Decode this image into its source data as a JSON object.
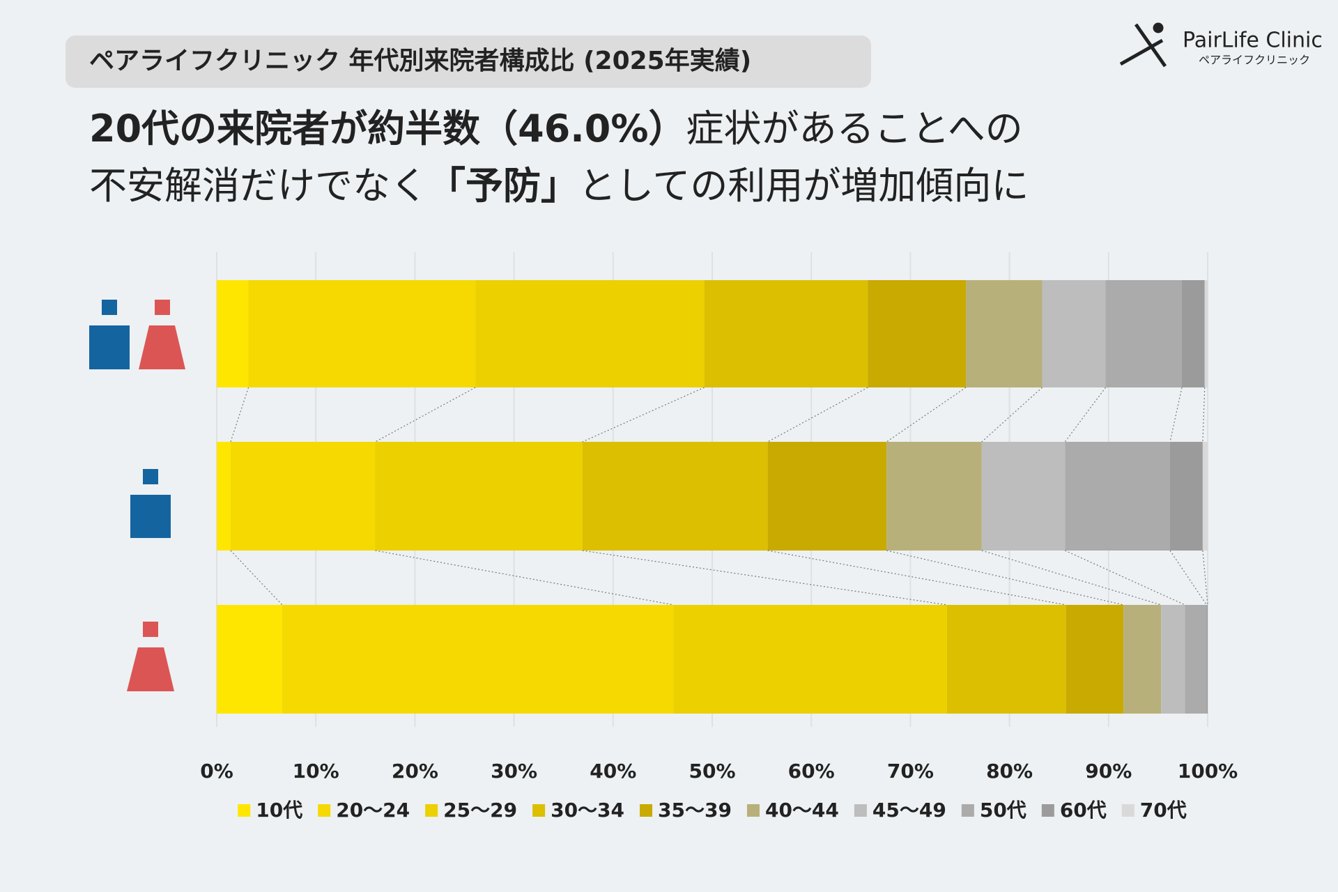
{
  "badge": "ペアライフクリニック 年代別来院者構成比 (2025年実績)",
  "logo": {
    "name": "PairLife Clinic",
    "sub": "ペアライフクリニック"
  },
  "headline": [
    [
      {
        "text": "20代の来院者が約半数（46.0%）",
        "bold": true
      },
      {
        "text": "症状があることへの",
        "bold": false
      }
    ],
    [
      {
        "text": "不安解消だけでなく",
        "bold": false
      },
      {
        "text": "「予防」",
        "bold": true
      },
      {
        "text": "としての利用が増加傾向に",
        "bold": false
      }
    ]
  ],
  "chart_data": {
    "type": "stacked-bar-horizontal",
    "categories": [
      null,
      null,
      null
    ],
    "xlim": [
      0,
      100
    ],
    "xticks": [
      {
        "value": 0,
        "label": "0%"
      },
      {
        "value": 10,
        "label": "10%"
      },
      {
        "value": 20,
        "label": "20%"
      },
      {
        "value": 30,
        "label": "30%"
      },
      {
        "value": 40,
        "label": "40%"
      },
      {
        "value": 50,
        "label": "50%"
      },
      {
        "value": 60,
        "label": "60%"
      },
      {
        "value": 70,
        "label": "70%"
      },
      {
        "value": 80,
        "label": "80%"
      },
      {
        "value": 90,
        "label": "90%"
      },
      {
        "value": 100,
        "label": "100%"
      }
    ],
    "grid": true,
    "legend": "bottom",
    "series": [
      {
        "name": "10代",
        "color": "#ffe600",
        "values": [
          3.2,
          1.4,
          6.6
        ]
      },
      {
        "name": "20～24",
        "color": "#f5d900",
        "values": [
          22.9,
          14.6,
          39.5
        ]
      },
      {
        "name": "25～29",
        "color": "#ecd000",
        "values": [
          23.1,
          20.9,
          27.6
        ]
      },
      {
        "name": "30～34",
        "color": "#dbbf00",
        "values": [
          16.5,
          18.7,
          12.0
        ]
      },
      {
        "name": "35～39",
        "color": "#c8aa00",
        "values": [
          9.9,
          12.0,
          5.8
        ]
      },
      {
        "name": "40～44",
        "color": "#b8b07a",
        "values": [
          7.7,
          9.6,
          3.8
        ]
      },
      {
        "name": "45～49",
        "color": "#bdbdbd",
        "values": [
          6.4,
          8.4,
          2.4
        ]
      },
      {
        "name": "50代",
        "color": "#ababab",
        "values": [
          7.7,
          10.6,
          2.2
        ]
      },
      {
        "name": "60代",
        "color": "#9b9b9b",
        "values": [
          2.3,
          3.3,
          0.1
        ]
      },
      {
        "name": "70代",
        "color": "#d9d9d9",
        "values": [
          0.3,
          0.5,
          0.0
        ]
      }
    ]
  }
}
